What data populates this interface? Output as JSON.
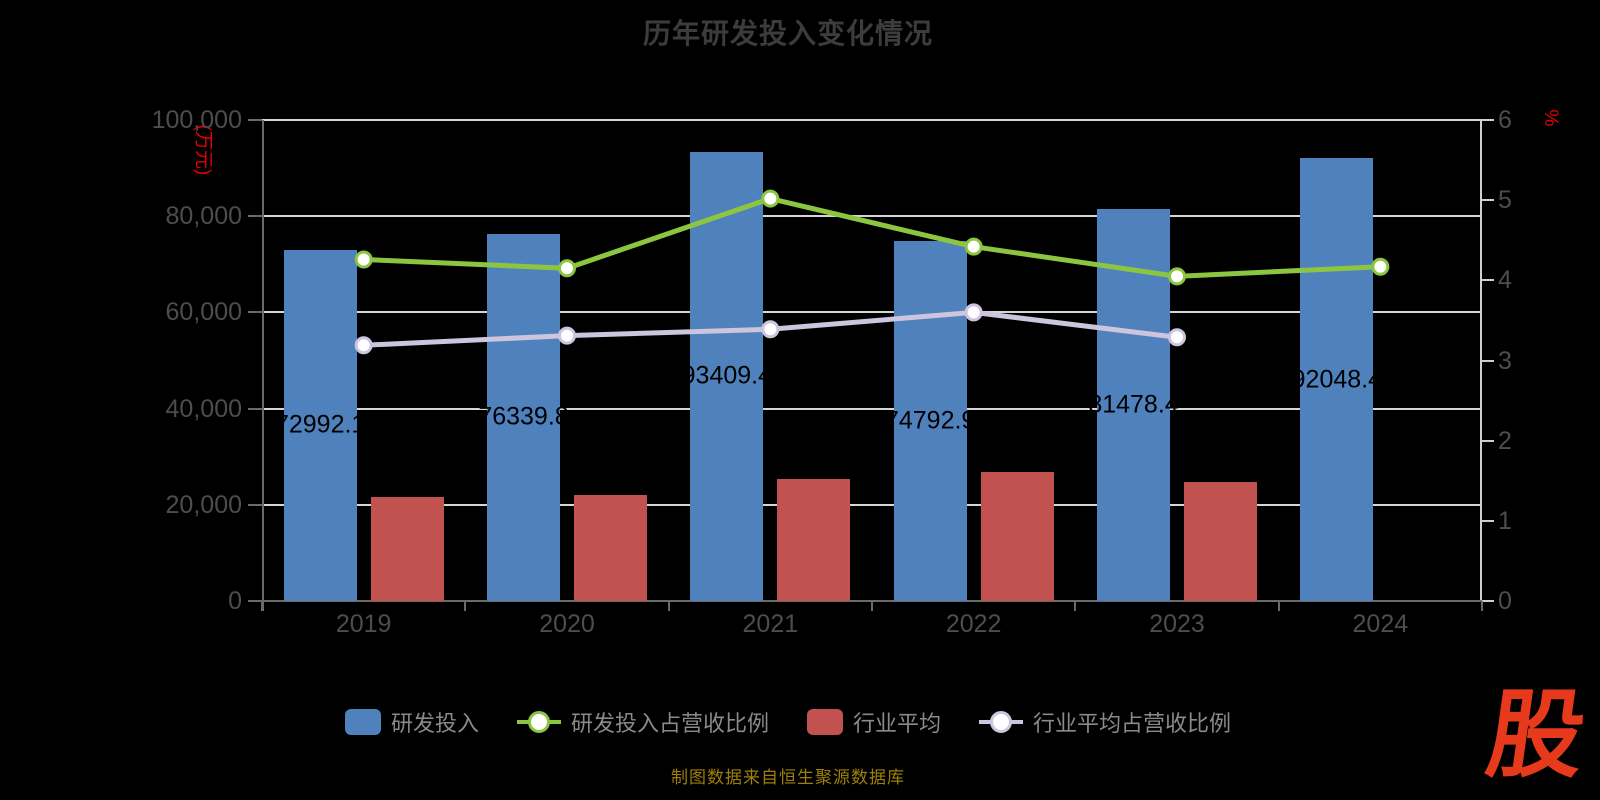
{
  "title": "历年研发投入变化情况",
  "footer": {
    "source_note": "制图数据来自恒生聚源数据库",
    "logo_text": "股"
  },
  "colors": {
    "background": "#000000",
    "title": "#3C3C3C",
    "bar_blue": "#4F81BD",
    "bar_red": "#C15250",
    "line_green": "#8CC540",
    "line_lavender": "#CDC5DE",
    "grid": "#D6D6D6",
    "axis_line": "#6A6A6A",
    "right_axis_line": "#CFCFCF",
    "axis_tick_label": "#4D4D4D",
    "axis_name_red": "#E60000",
    "bar_value_label": "#000000",
    "legend_text": "#8A8A8A",
    "footer_text": "#9E8008",
    "logo_red": "#E7391B"
  },
  "chart_data": {
    "type": "bar",
    "subtype": "combo-bar-line-dual-axis",
    "categories": [
      "2019",
      "2020",
      "2021",
      "2022",
      "2023",
      "2024"
    ],
    "left_axis": {
      "name": "(万元)",
      "min": 0,
      "max": 100000,
      "tick_labels": [
        "100,000",
        "80,000",
        "60,000",
        "40,000",
        "20,000",
        "0"
      ],
      "tick_values": [
        100000,
        80000,
        60000,
        40000,
        20000,
        0
      ]
    },
    "right_axis": {
      "name": "%",
      "min": 0,
      "max": 6,
      "tick_labels": [
        "6",
        "5",
        "4",
        "3",
        "2",
        "1",
        "0"
      ],
      "tick_values": [
        6,
        5,
        4,
        3,
        2,
        1,
        0
      ]
    },
    "grid": true,
    "legend_position": "bottom",
    "series": [
      {
        "name": "研发投入",
        "type": "bar",
        "axis": "left",
        "color": "#4F81BD",
        "values": [
          72992.1,
          76339.8,
          93409.4,
          74792.9,
          81478.4,
          92048.4
        ],
        "data_labels": [
          "72992.1",
          "76339.8",
          "93409.4",
          "74792.9",
          "81478.4",
          "92048.4"
        ]
      },
      {
        "name": "研发投入占营收比例",
        "type": "line",
        "axis": "right",
        "color": "#8CC540",
        "values": [
          4.26,
          4.15,
          5.02,
          4.42,
          4.05,
          4.17
        ]
      },
      {
        "name": "行业平均",
        "type": "bar",
        "axis": "left",
        "color": "#C15250",
        "values": [
          21600,
          22100,
          25400,
          26900,
          24700,
          null
        ]
      },
      {
        "name": "行业平均占营收比例",
        "type": "line",
        "axis": "right",
        "color": "#CDC5DE",
        "values": [
          3.19,
          3.31,
          3.39,
          3.6,
          3.29,
          null
        ]
      }
    ]
  }
}
